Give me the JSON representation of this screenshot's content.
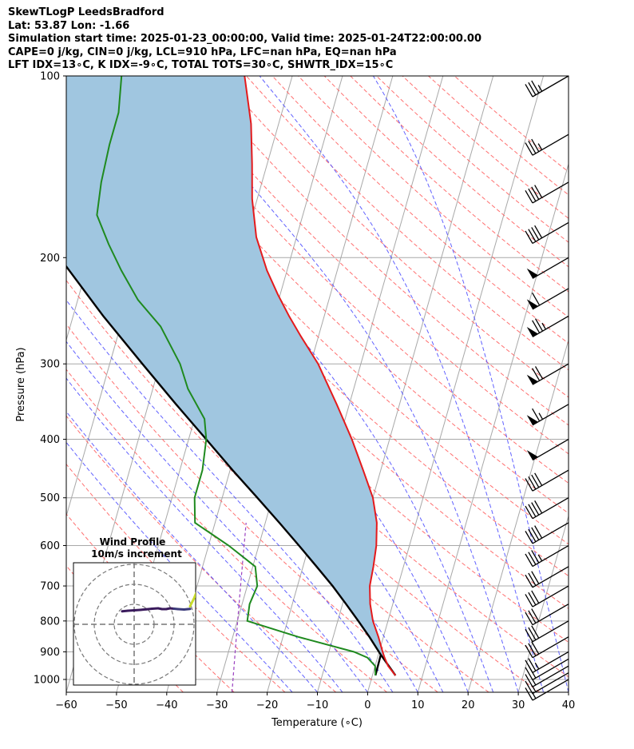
{
  "header": {
    "line1": "SkewTLogP LeedsBradford",
    "line2": "Lat: 53.87   Lon: -1.66",
    "line3": "Simulation start time: 2025-01-23_00:00:00, Valid time: 2025-01-24T22:00:00.00",
    "line4": "CAPE=0 j/kg, CIN=0 j/kg, LCL=910 hPa, LFC=nan hPa, EQ=nan hPa",
    "line5": "LFT IDX=13∘C, K IDX=-9∘C, TOTAL TOTS=30∘C, SHWTR_IDX=15∘C"
  },
  "chart_data": {
    "type": "line",
    "xlabel": "Temperature (∘C)",
    "ylabel": "Pressure (hPa)",
    "xlim": [
      -60,
      40
    ],
    "ylim": [
      1050,
      100
    ],
    "yscale": "log",
    "skew": true,
    "grid": true,
    "x_ticks": [
      "−60",
      "−50",
      "−40",
      "−30",
      "−20",
      "−10",
      "0",
      "10",
      "20",
      "30",
      "40"
    ],
    "y_ticks": [
      {
        "p": 100,
        "label": "100"
      },
      {
        "p": 200,
        "label": "200"
      },
      {
        "p": 300,
        "label": "300"
      },
      {
        "p": 400,
        "label": "400"
      },
      {
        "p": 500,
        "label": "500"
      },
      {
        "p": 600,
        "label": "600"
      },
      {
        "p": 700,
        "label": "700"
      },
      {
        "p": 800,
        "label": "800"
      },
      {
        "p": 900,
        "label": "900"
      },
      {
        "p": 1000,
        "label": "1000"
      }
    ],
    "colors": {
      "temperature": "#e41a1c",
      "dewpoint": "#1f8a1f",
      "parcel": "#000000",
      "shade": "#a0c6e0",
      "dry_adiabat": "#ff6060",
      "moist_adiabat": "#5050ff",
      "mixing_ratio": "#9a40c0",
      "isotherm": "#a8a8a8",
      "isobar": "#a8a8a8"
    },
    "series": [
      {
        "key": "temperature",
        "points": [
          [
            985,
            4.6
          ],
          [
            950,
            2.6
          ],
          [
            920,
            1.4
          ],
          [
            900,
            0.7
          ],
          [
            850,
            -1.0
          ],
          [
            800,
            -3.0
          ],
          [
            750,
            -4.5
          ],
          [
            700,
            -5.6
          ],
          [
            650,
            -6.0
          ],
          [
            600,
            -6.6
          ],
          [
            550,
            -7.8
          ],
          [
            500,
            -10.0
          ],
          [
            450,
            -13.5
          ],
          [
            400,
            -17.5
          ],
          [
            350,
            -22.5
          ],
          [
            300,
            -28.5
          ],
          [
            270,
            -33.5
          ],
          [
            250,
            -37.0
          ],
          [
            230,
            -40.5
          ],
          [
            210,
            -44.0
          ],
          [
            185,
            -48.0
          ],
          [
            160,
            -51.0
          ],
          [
            140,
            -53.0
          ],
          [
            120,
            -55.5
          ],
          [
            100,
            -59.5
          ]
        ]
      },
      {
        "key": "dewpoint",
        "points": [
          [
            985,
            0.6
          ],
          [
            950,
            0.0
          ],
          [
            920,
            -2.0
          ],
          [
            900,
            -5.0
          ],
          [
            850,
            -17.0
          ],
          [
            800,
            -28.0
          ],
          [
            750,
            -28.5
          ],
          [
            700,
            -28.0
          ],
          [
            650,
            -29.5
          ],
          [
            600,
            -36.0
          ],
          [
            550,
            -44.0
          ],
          [
            500,
            -45.5
          ],
          [
            450,
            -45.5
          ],
          [
            400,
            -46.5
          ],
          [
            370,
            -48.0
          ],
          [
            330,
            -53.0
          ],
          [
            300,
            -56.0
          ],
          [
            260,
            -62.0
          ],
          [
            235,
            -68.0
          ],
          [
            210,
            -73.0
          ],
          [
            190,
            -77.0
          ],
          [
            170,
            -81.0
          ],
          [
            150,
            -82.0
          ],
          [
            130,
            -82.5
          ],
          [
            115,
            -82.5
          ],
          [
            100,
            -84.0
          ]
        ]
      },
      {
        "key": "parcel",
        "points": [
          [
            985,
            4.6
          ],
          [
            910,
            0.5
          ],
          [
            985,
            0.6
          ],
          [
            910,
            0.5
          ],
          [
            850,
            -2.8
          ],
          [
            800,
            -5.9
          ],
          [
            750,
            -9.3
          ],
          [
            700,
            -13.0
          ],
          [
            650,
            -17.3
          ],
          [
            600,
            -22.0
          ],
          [
            550,
            -27.2
          ],
          [
            500,
            -33.0
          ],
          [
            450,
            -39.5
          ],
          [
            400,
            -46.5
          ],
          [
            350,
            -54.5
          ],
          [
            300,
            -63.5
          ],
          [
            250,
            -74.0
          ],
          [
            200,
            -86.0
          ],
          [
            150,
            -101.0
          ],
          [
            100,
            -121.0
          ]
        ]
      }
    ],
    "wind_barbs": {
      "pressures": [
        1000,
        975,
        950,
        925,
        900,
        850,
        800,
        750,
        700,
        650,
        600,
        550,
        500,
        450,
        400,
        350,
        300,
        250,
        225,
        200,
        175,
        150,
        125,
        100
      ],
      "speeds_kt": [
        15,
        15,
        15,
        20,
        25,
        30,
        30,
        30,
        30,
        30,
        35,
        40,
        40,
        40,
        50,
        65,
        70,
        75,
        60,
        50,
        40,
        40,
        35,
        35
      ],
      "direction_deg": 240
    },
    "hodograph": {
      "title": "Wind Profile",
      "subtitle": "10m/s increment",
      "rings": [
        10,
        20,
        30
      ],
      "points": [
        [
          -6,
          6.5
        ],
        [
          -3,
          6.8
        ],
        [
          0,
          7.0
        ],
        [
          3,
          7.2
        ],
        [
          6,
          7.5
        ],
        [
          9,
          7.8
        ],
        [
          12,
          8.0
        ],
        [
          14,
          7.6
        ],
        [
          16,
          7.6
        ],
        [
          18,
          8.0
        ],
        [
          20,
          7.8
        ],
        [
          22,
          7.6
        ],
        [
          25,
          7.4
        ],
        [
          27,
          7.6
        ],
        [
          28,
          7.7
        ]
      ],
      "upper_points": [
        [
          28,
          9.0
        ],
        [
          29,
          11.0
        ],
        [
          30,
          13.0
        ],
        [
          31,
          15.5
        ]
      ]
    }
  }
}
